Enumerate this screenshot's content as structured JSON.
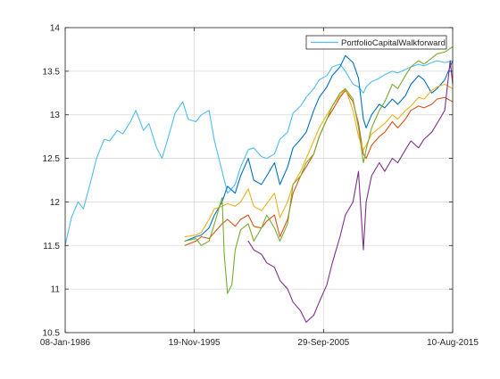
{
  "chart_data": {
    "type": "line",
    "title": "",
    "xlabel": "",
    "ylabel": "",
    "x_tick_labels": [
      "08-Jan-1986",
      "19-Nov-1995",
      "29-Sep-2005",
      "10-Aug-2015"
    ],
    "x_tick_dates": [
      "1986-01-08",
      "1995-11-19",
      "2005-09-29",
      "2015-08-10"
    ],
    "xlim": [
      "1986-01-08",
      "2015-08-10"
    ],
    "y_ticks": [
      10.5,
      11,
      11.5,
      12,
      12.5,
      13,
      13.5,
      14
    ],
    "y_tick_labels": [
      "10.5",
      "11",
      "11.5",
      "12",
      "12.5",
      "13",
      "13.5",
      "14"
    ],
    "ylim": [
      10.5,
      14
    ],
    "grid": true,
    "legend": {
      "placement": "top-right",
      "entries": [
        "PortfolioCapitalWalkforward"
      ]
    },
    "series": [
      {
        "name": "PortfolioCapitalWalkforward",
        "color": "#4DBEEE",
        "points": [
          [
            "1986-01-08",
            11.5
          ],
          [
            "1986-07-01",
            11.82
          ],
          [
            "1987-01-01",
            12.0
          ],
          [
            "1987-06-01",
            11.92
          ],
          [
            "1988-01-01",
            12.25
          ],
          [
            "1988-06-01",
            12.5
          ],
          [
            "1989-01-01",
            12.72
          ],
          [
            "1989-06-01",
            12.7
          ],
          [
            "1990-01-01",
            12.82
          ],
          [
            "1990-06-01",
            12.78
          ],
          [
            "1991-01-01",
            12.92
          ],
          [
            "1991-06-01",
            13.05
          ],
          [
            "1992-01-01",
            12.82
          ],
          [
            "1992-06-01",
            12.9
          ],
          [
            "1993-01-01",
            12.62
          ],
          [
            "1993-06-01",
            12.5
          ],
          [
            "1994-01-01",
            12.8
          ],
          [
            "1994-06-01",
            13.02
          ],
          [
            "1995-01-01",
            13.15
          ],
          [
            "1995-06-01",
            12.95
          ],
          [
            "1996-01-01",
            12.92
          ],
          [
            "1996-06-01",
            13.0
          ],
          [
            "1997-01-01",
            13.05
          ],
          [
            "1997-06-01",
            12.7
          ],
          [
            "1998-01-01",
            12.35
          ],
          [
            "1998-06-01",
            12.1
          ],
          [
            "1999-01-01",
            12.2
          ],
          [
            "1999-06-01",
            12.4
          ],
          [
            "2000-01-01",
            12.6
          ],
          [
            "2000-06-01",
            12.62
          ],
          [
            "2001-01-01",
            12.52
          ],
          [
            "2001-06-01",
            12.5
          ],
          [
            "2002-01-01",
            12.55
          ],
          [
            "2002-06-01",
            12.72
          ],
          [
            "2003-01-01",
            12.8
          ],
          [
            "2003-06-01",
            13.02
          ],
          [
            "2004-01-01",
            13.1
          ],
          [
            "2004-06-01",
            13.2
          ],
          [
            "2005-01-01",
            13.3
          ],
          [
            "2005-06-01",
            13.4
          ],
          [
            "2006-01-01",
            13.45
          ],
          [
            "2006-06-01",
            13.55
          ],
          [
            "2007-01-01",
            13.58
          ],
          [
            "2007-06-01",
            13.5
          ],
          [
            "2008-01-01",
            13.35
          ],
          [
            "2008-06-01",
            13.32
          ],
          [
            "2008-10-15",
            13.25
          ],
          [
            "2009-01-01",
            13.32
          ],
          [
            "2009-06-01",
            13.38
          ],
          [
            "2010-01-01",
            13.42
          ],
          [
            "2010-06-01",
            13.46
          ],
          [
            "2011-01-01",
            13.5
          ],
          [
            "2011-06-01",
            13.48
          ],
          [
            "2012-01-01",
            13.52
          ],
          [
            "2012-06-01",
            13.55
          ],
          [
            "2013-01-01",
            13.58
          ],
          [
            "2013-06-01",
            13.56
          ],
          [
            "2014-01-01",
            13.6
          ],
          [
            "2014-06-01",
            13.62
          ],
          [
            "2015-01-01",
            13.6
          ],
          [
            "2015-08-10",
            13.62
          ]
        ]
      },
      {
        "color": "#0072BD",
        "points": [
          [
            "1995-03-01",
            11.55
          ],
          [
            "1996-01-01",
            11.6
          ],
          [
            "1996-06-01",
            11.62
          ],
          [
            "1997-01-01",
            11.7
          ],
          [
            "1997-06-01",
            11.85
          ],
          [
            "1998-01-01",
            12.0
          ],
          [
            "1998-06-01",
            12.18
          ],
          [
            "1999-01-01",
            12.1
          ],
          [
            "1999-06-01",
            12.3
          ],
          [
            "2000-01-01",
            12.5
          ],
          [
            "2000-06-01",
            12.25
          ],
          [
            "2001-01-01",
            12.2
          ],
          [
            "2001-06-01",
            12.3
          ],
          [
            "2002-01-01",
            12.45
          ],
          [
            "2002-06-01",
            12.2
          ],
          [
            "2003-01-01",
            12.4
          ],
          [
            "2003-06-01",
            12.62
          ],
          [
            "2004-01-01",
            12.72
          ],
          [
            "2004-06-01",
            12.8
          ],
          [
            "2005-01-01",
            13.05
          ],
          [
            "2005-06-01",
            13.2
          ],
          [
            "2006-01-01",
            13.32
          ],
          [
            "2006-06-01",
            13.45
          ],
          [
            "2007-01-01",
            13.55
          ],
          [
            "2007-06-01",
            13.68
          ],
          [
            "2008-01-01",
            13.6
          ],
          [
            "2008-06-01",
            13.42
          ],
          [
            "2008-10-15",
            12.95
          ],
          [
            "2009-01-01",
            12.85
          ],
          [
            "2009-06-01",
            13.0
          ],
          [
            "2010-01-01",
            13.12
          ],
          [
            "2010-06-01",
            13.08
          ],
          [
            "2011-01-01",
            13.18
          ],
          [
            "2011-06-01",
            13.12
          ],
          [
            "2012-01-01",
            13.22
          ],
          [
            "2012-06-01",
            13.35
          ],
          [
            "2013-01-01",
            13.45
          ],
          [
            "2013-06-01",
            13.4
          ],
          [
            "2014-01-01",
            13.25
          ],
          [
            "2014-06-01",
            13.3
          ],
          [
            "2015-01-01",
            13.4
          ],
          [
            "2015-08-10",
            13.62
          ]
        ]
      },
      {
        "color": "#D95319",
        "points": [
          [
            "1995-03-01",
            11.5
          ],
          [
            "1996-01-01",
            11.55
          ],
          [
            "1996-06-01",
            11.6
          ],
          [
            "1997-01-01",
            11.58
          ],
          [
            "1997-06-01",
            11.65
          ],
          [
            "1998-01-01",
            11.75
          ],
          [
            "1998-06-01",
            11.8
          ],
          [
            "1999-01-01",
            11.72
          ],
          [
            "1999-06-01",
            11.8
          ],
          [
            "2000-01-01",
            11.85
          ],
          [
            "2000-06-01",
            11.72
          ],
          [
            "2001-01-01",
            11.7
          ],
          [
            "2001-06-01",
            11.78
          ],
          [
            "2002-01-01",
            11.85
          ],
          [
            "2002-06-01",
            11.6
          ],
          [
            "2003-01-01",
            11.8
          ],
          [
            "2003-06-01",
            12.1
          ],
          [
            "2004-01-01",
            12.3
          ],
          [
            "2004-06-01",
            12.4
          ],
          [
            "2005-01-01",
            12.55
          ],
          [
            "2005-06-01",
            12.75
          ],
          [
            "2006-01-01",
            12.95
          ],
          [
            "2006-06-01",
            13.05
          ],
          [
            "2007-01-01",
            13.2
          ],
          [
            "2007-06-01",
            13.28
          ],
          [
            "2008-01-01",
            13.15
          ],
          [
            "2008-06-01",
            12.9
          ],
          [
            "2008-10-15",
            12.55
          ],
          [
            "2009-01-01",
            12.5
          ],
          [
            "2009-06-01",
            12.65
          ],
          [
            "2010-01-01",
            12.75
          ],
          [
            "2010-06-01",
            12.8
          ],
          [
            "2011-01-01",
            12.92
          ],
          [
            "2011-06-01",
            12.85
          ],
          [
            "2012-01-01",
            12.95
          ],
          [
            "2012-06-01",
            13.05
          ],
          [
            "2013-01-01",
            13.1
          ],
          [
            "2013-06-01",
            13.08
          ],
          [
            "2014-01-01",
            13.12
          ],
          [
            "2014-06-01",
            13.18
          ],
          [
            "2015-01-01",
            13.2
          ],
          [
            "2015-08-10",
            13.15
          ]
        ]
      },
      {
        "color": "#EDB120",
        "points": [
          [
            "1995-03-01",
            11.6
          ],
          [
            "1996-01-01",
            11.62
          ],
          [
            "1996-06-01",
            11.65
          ],
          [
            "1997-01-01",
            11.8
          ],
          [
            "1997-06-01",
            11.92
          ],
          [
            "1998-01-01",
            11.95
          ],
          [
            "1998-06-01",
            11.98
          ],
          [
            "1999-01-01",
            11.95
          ],
          [
            "1999-06-01",
            12.0
          ],
          [
            "2000-01-01",
            12.15
          ],
          [
            "2000-06-01",
            11.95
          ],
          [
            "2001-01-01",
            11.9
          ],
          [
            "2001-06-01",
            11.98
          ],
          [
            "2002-01-01",
            12.1
          ],
          [
            "2002-06-01",
            11.82
          ],
          [
            "2003-01-01",
            12.0
          ],
          [
            "2003-06-01",
            12.2
          ],
          [
            "2004-01-01",
            12.35
          ],
          [
            "2004-06-01",
            12.5
          ],
          [
            "2005-01-01",
            12.7
          ],
          [
            "2005-06-01",
            12.85
          ],
          [
            "2006-01-01",
            13.0
          ],
          [
            "2006-06-01",
            13.1
          ],
          [
            "2007-01-01",
            13.22
          ],
          [
            "2007-06-01",
            13.3
          ],
          [
            "2008-01-01",
            13.05
          ],
          [
            "2008-06-01",
            12.75
          ],
          [
            "2008-10-15",
            12.6
          ],
          [
            "2009-01-01",
            12.65
          ],
          [
            "2009-06-01",
            12.78
          ],
          [
            "2010-01-01",
            12.85
          ],
          [
            "2010-06-01",
            12.9
          ],
          [
            "2011-01-01",
            13.0
          ],
          [
            "2011-06-01",
            12.95
          ],
          [
            "2012-01-01",
            13.05
          ],
          [
            "2012-06-01",
            13.1
          ],
          [
            "2013-01-01",
            13.2
          ],
          [
            "2013-06-01",
            13.18
          ],
          [
            "2014-01-01",
            13.28
          ],
          [
            "2014-06-01",
            13.32
          ],
          [
            "2015-01-01",
            13.35
          ],
          [
            "2015-08-10",
            13.3
          ]
        ]
      },
      {
        "color": "#77AC30",
        "points": [
          [
            "1995-03-01",
            11.55
          ],
          [
            "1996-01-01",
            11.58
          ],
          [
            "1996-06-01",
            11.5
          ],
          [
            "1997-01-01",
            11.55
          ],
          [
            "1997-06-01",
            11.75
          ],
          [
            "1998-01-01",
            12.05
          ],
          [
            "1998-03-01",
            11.4
          ],
          [
            "1998-06-01",
            10.95
          ],
          [
            "1998-10-01",
            11.05
          ],
          [
            "1999-01-01",
            11.45
          ],
          [
            "1999-06-01",
            11.68
          ],
          [
            "2000-01-01",
            11.75
          ],
          [
            "2000-06-01",
            11.55
          ],
          [
            "2001-01-01",
            11.7
          ],
          [
            "2001-06-01",
            11.85
          ],
          [
            "2002-01-01",
            11.7
          ],
          [
            "2002-06-01",
            11.55
          ],
          [
            "2003-01-01",
            11.75
          ],
          [
            "2003-06-01",
            12.2
          ],
          [
            "2004-01-01",
            12.3
          ],
          [
            "2004-06-01",
            12.45
          ],
          [
            "2005-01-01",
            12.55
          ],
          [
            "2005-06-01",
            12.75
          ],
          [
            "2006-01-01",
            12.95
          ],
          [
            "2006-06-01",
            13.1
          ],
          [
            "2007-01-01",
            13.25
          ],
          [
            "2007-06-01",
            13.3
          ],
          [
            "2008-01-01",
            13.18
          ],
          [
            "2008-06-01",
            12.85
          ],
          [
            "2008-10-15",
            12.45
          ],
          [
            "2009-01-01",
            12.6
          ],
          [
            "2009-06-01",
            12.85
          ],
          [
            "2010-01-01",
            13.05
          ],
          [
            "2010-06-01",
            13.15
          ],
          [
            "2011-01-01",
            13.35
          ],
          [
            "2011-06-01",
            13.3
          ],
          [
            "2012-01-01",
            13.45
          ],
          [
            "2012-06-01",
            13.55
          ],
          [
            "2013-01-01",
            13.62
          ],
          [
            "2013-06-01",
            13.58
          ],
          [
            "2014-01-01",
            13.65
          ],
          [
            "2014-06-01",
            13.7
          ],
          [
            "2015-01-01",
            13.72
          ],
          [
            "2015-08-10",
            13.78
          ]
        ]
      },
      {
        "color": "#7E2F8E",
        "points": [
          [
            "2000-01-01",
            11.55
          ],
          [
            "2000-06-01",
            11.45
          ],
          [
            "2001-01-01",
            11.4
          ],
          [
            "2001-06-01",
            11.3
          ],
          [
            "2002-01-01",
            11.25
          ],
          [
            "2002-06-01",
            11.1
          ],
          [
            "2003-01-01",
            11.0
          ],
          [
            "2003-06-01",
            10.85
          ],
          [
            "2004-01-01",
            10.75
          ],
          [
            "2004-06-01",
            10.62
          ],
          [
            "2005-01-01",
            10.7
          ],
          [
            "2005-06-01",
            10.85
          ],
          [
            "2006-01-01",
            11.05
          ],
          [
            "2006-06-01",
            11.3
          ],
          [
            "2007-01-01",
            11.6
          ],
          [
            "2007-06-01",
            11.85
          ],
          [
            "2008-01-01",
            12.0
          ],
          [
            "2008-06-01",
            12.35
          ],
          [
            "2008-10-15",
            11.45
          ],
          [
            "2009-01-01",
            12.0
          ],
          [
            "2009-06-01",
            12.3
          ],
          [
            "2010-01-01",
            12.45
          ],
          [
            "2010-06-01",
            12.35
          ],
          [
            "2011-01-01",
            12.5
          ],
          [
            "2011-06-01",
            12.45
          ],
          [
            "2012-01-01",
            12.6
          ],
          [
            "2012-06-01",
            12.7
          ],
          [
            "2013-01-01",
            12.62
          ],
          [
            "2013-06-01",
            12.72
          ],
          [
            "2014-01-01",
            12.8
          ],
          [
            "2014-06-01",
            12.9
          ],
          [
            "2015-01-01",
            13.05
          ],
          [
            "2015-06-01",
            13.62
          ],
          [
            "2015-08-10",
            13.35
          ]
        ]
      }
    ]
  }
}
